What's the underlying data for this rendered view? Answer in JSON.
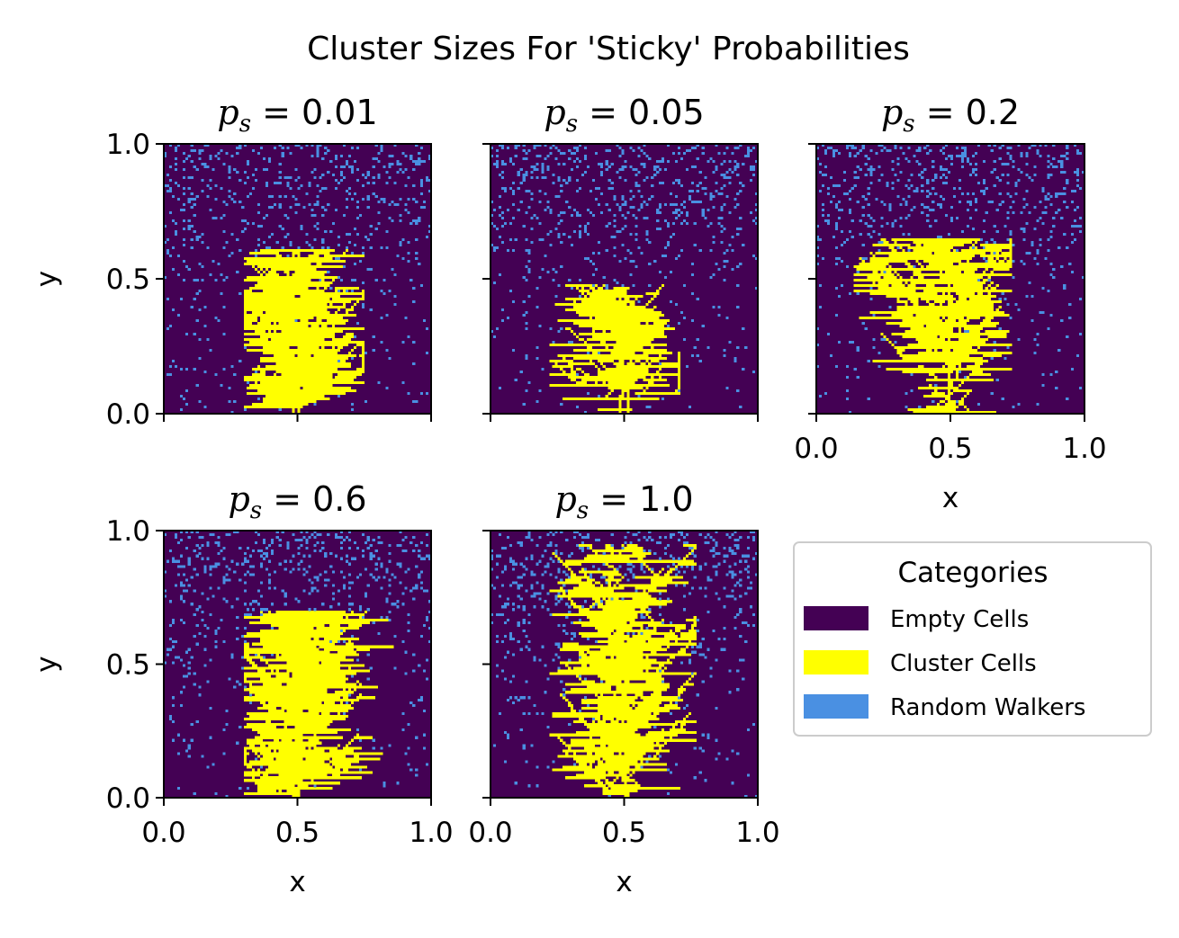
{
  "title": "Cluster Sizes For 'Sticky' Probabilities",
  "colors": {
    "empty": "#440154",
    "cluster": "#ffff00",
    "walker": "#4a90e2"
  },
  "legend": {
    "title": "Categories",
    "position": "right, below top-right panel",
    "items": [
      {
        "label": "Empty Cells",
        "color": "#440154"
      },
      {
        "label": "Cluster Cells",
        "color": "#ffff00"
      },
      {
        "label": "Random Walkers",
        "color": "#4a90e2"
      }
    ]
  },
  "chart_data": [
    {
      "type": "heatmap",
      "title": "p_s = 0.01",
      "title_parts": {
        "symbol": "p",
        "subscript": "s",
        "equals": " = ",
        "value": "0.01"
      },
      "xlabel": "",
      "ylabel": "y",
      "xlim": [
        0,
        1
      ],
      "ylim": [
        0,
        1
      ],
      "xticks": [
        "0.0",
        "0.5",
        "1.0"
      ],
      "xticklabels_shown": false,
      "yticks": [
        "0.0",
        "0.5",
        "1.0"
      ],
      "yticklabels_shown": true,
      "grid_cells": 100,
      "sticky_probability": 0.01,
      "cluster_extent": {
        "x": [
          0.3,
          0.74
        ],
        "y": [
          0.0,
          0.61
        ]
      },
      "seed_x": 0.5
    },
    {
      "type": "heatmap",
      "title": "p_s = 0.05",
      "title_parts": {
        "symbol": "p",
        "subscript": "s",
        "equals": " = ",
        "value": "0.05"
      },
      "xlabel": "",
      "ylabel": "",
      "xlim": [
        0,
        1
      ],
      "ylim": [
        0,
        1
      ],
      "xticks": [
        "0.0",
        "0.5",
        "1.0"
      ],
      "xticklabels_shown": false,
      "yticks": [
        "0.0",
        "0.5",
        "1.0"
      ],
      "yticklabels_shown": false,
      "grid_cells": 100,
      "sticky_probability": 0.05,
      "cluster_extent": {
        "x": [
          0.22,
          0.7
        ],
        "y": [
          0.0,
          0.48
        ]
      },
      "seed_x": 0.5
    },
    {
      "type": "heatmap",
      "title": "p_s = 0.2",
      "title_parts": {
        "symbol": "p",
        "subscript": "s",
        "equals": " = ",
        "value": "0.2"
      },
      "xlabel": "x",
      "ylabel": "",
      "xlim": [
        0,
        1
      ],
      "ylim": [
        0,
        1
      ],
      "xticks": [
        "0.0",
        "0.5",
        "1.0"
      ],
      "xticklabels_shown": true,
      "yticks": [
        "0.0",
        "0.5",
        "1.0"
      ],
      "yticklabels_shown": false,
      "grid_cells": 100,
      "sticky_probability": 0.2,
      "cluster_extent": {
        "x": [
          0.14,
          0.72
        ],
        "y": [
          0.0,
          0.65
        ]
      },
      "seed_x": 0.5
    },
    {
      "type": "heatmap",
      "title": "p_s = 0.6",
      "title_parts": {
        "symbol": "p",
        "subscript": "s",
        "equals": " = ",
        "value": "0.6"
      },
      "xlabel": "x",
      "ylabel": "y",
      "xlim": [
        0,
        1
      ],
      "ylim": [
        0,
        1
      ],
      "xticks": [
        "0.0",
        "0.5",
        "1.0"
      ],
      "xticklabels_shown": true,
      "yticks": [
        "0.0",
        "0.5",
        "1.0"
      ],
      "yticklabels_shown": true,
      "grid_cells": 100,
      "sticky_probability": 0.6,
      "cluster_extent": {
        "x": [
          0.3,
          0.85
        ],
        "y": [
          0.0,
          0.7
        ]
      },
      "seed_x": 0.5
    },
    {
      "type": "heatmap",
      "title": "p_s = 1.0",
      "title_parts": {
        "symbol": "p",
        "subscript": "s",
        "equals": " = ",
        "value": "1.0"
      },
      "xlabel": "x",
      "ylabel": "",
      "xlim": [
        0,
        1
      ],
      "ylim": [
        0,
        1
      ],
      "xticks": [
        "0.0",
        "0.5",
        "1.0"
      ],
      "xticklabels_shown": true,
      "yticks": [
        "0.0",
        "0.5",
        "1.0"
      ],
      "yticklabels_shown": false,
      "grid_cells": 100,
      "sticky_probability": 1.0,
      "cluster_extent": {
        "x": [
          0.22,
          0.76
        ],
        "y": [
          0.0,
          0.95
        ]
      },
      "seed_x": 0.5
    }
  ]
}
